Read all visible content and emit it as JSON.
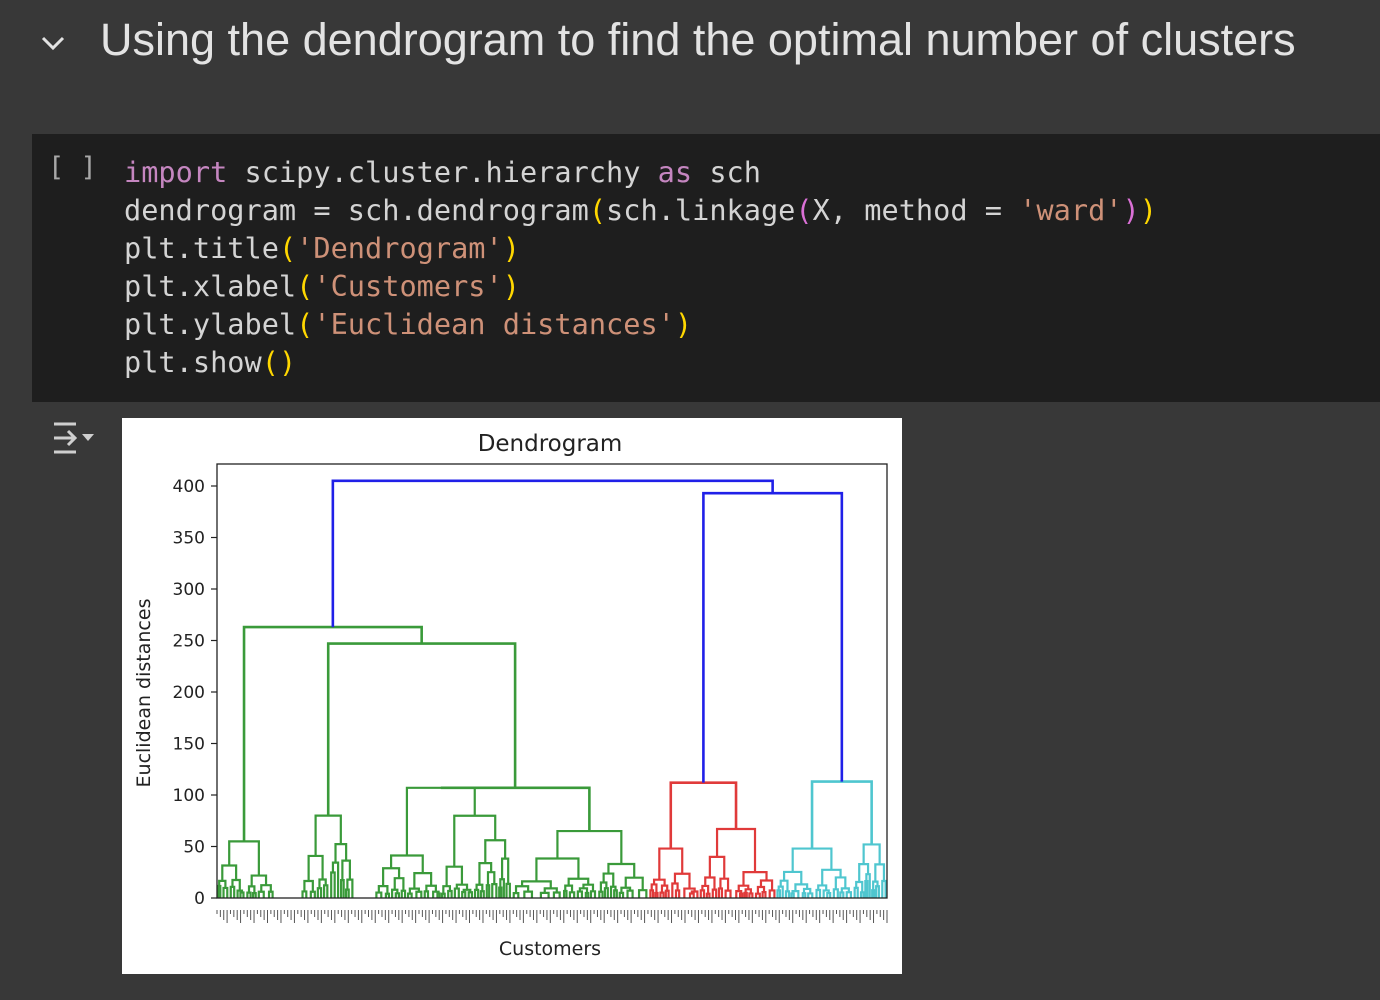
{
  "section": {
    "title": "Using the dendrogram to find the optimal number of clusters",
    "collapse_icon": "chevron-down-icon"
  },
  "cell": {
    "run_label": "[ ]",
    "code": {
      "line1": {
        "kw1": "import",
        "mod": " scipy.cluster.hierarchy ",
        "kw2": "as",
        "alias": " sch"
      },
      "line2": {
        "a": "dendrogram = sch.dendrogram",
        "p1": "(",
        "b": "sch.linkage",
        "p2": "(",
        "c": "X, method = ",
        "s": "'ward'",
        "p3": ")",
        "p4": ")"
      },
      "line3": {
        "a": "plt.title",
        "p1": "(",
        "s": "'Dendrogram'",
        "p2": ")"
      },
      "line4": {
        "a": "plt.xlabel",
        "p1": "(",
        "s": "'Customers'",
        "p2": ")"
      },
      "line5": {
        "a": "plt.ylabel",
        "p1": "(",
        "s": "'Euclidean distances'",
        "p2": ")"
      },
      "line6": {
        "a": "plt.show",
        "p1": "(",
        "p2": ")"
      }
    },
    "output_icon": "output-collapse-icon"
  },
  "chart_data": {
    "type": "dendrogram",
    "title": "Dendrogram",
    "xlabel": "Customers",
    "ylabel": "Euclidean distances",
    "ylim": [
      0,
      420
    ],
    "yticks": [
      0,
      50,
      100,
      150,
      200,
      250,
      300,
      350,
      400
    ],
    "grid": false,
    "colors": {
      "cluster1": "#3a9a3a",
      "cluster2": "#e03a3a",
      "cluster3": "#4fc6cf",
      "top": "#2020e8"
    },
    "merges": [
      {
        "color": "top",
        "y": 405
      },
      {
        "color": "top",
        "y": 393
      },
      {
        "color": "cluster1",
        "y": 263
      },
      {
        "color": "cluster1",
        "y": 247
      },
      {
        "color": "cluster2",
        "y": 112
      },
      {
        "color": "cluster3",
        "y": 113
      },
      {
        "color": "cluster1",
        "y": 107
      },
      {
        "color": "cluster1",
        "y": 80
      }
    ]
  }
}
